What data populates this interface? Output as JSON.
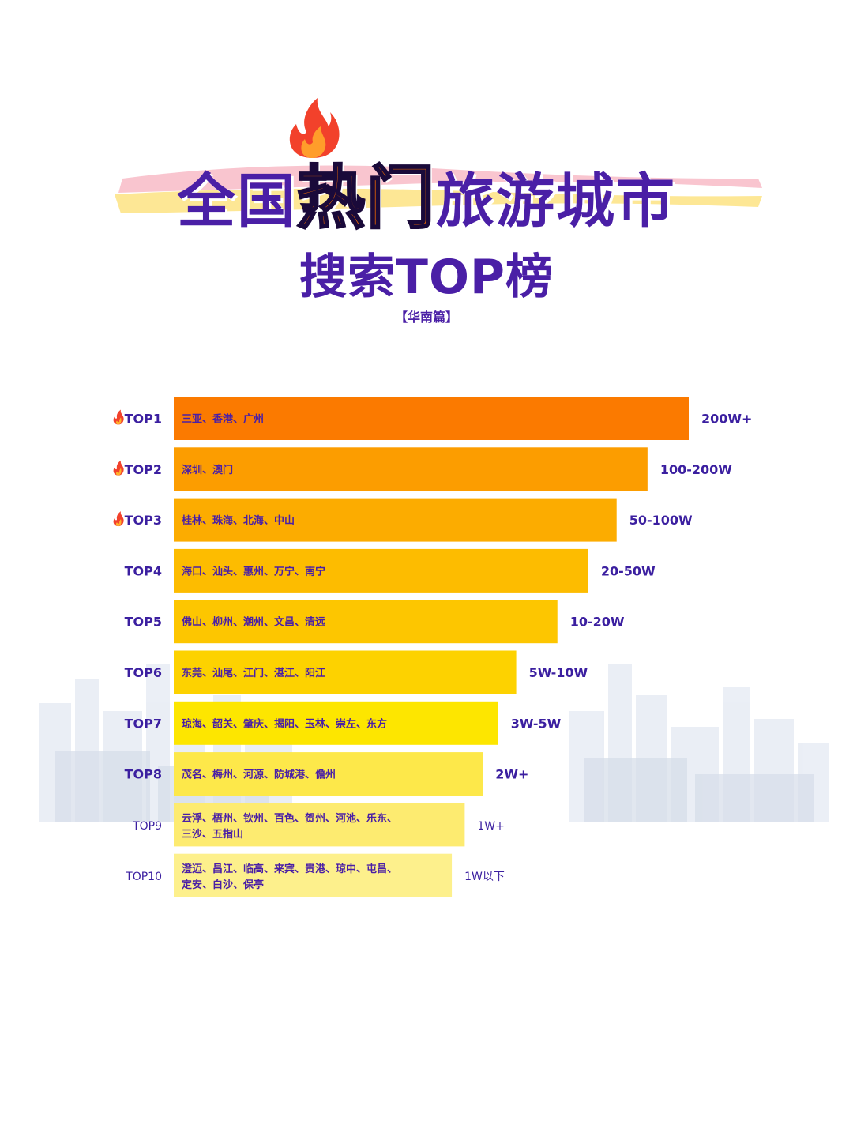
{
  "header": {
    "title_part1": "全国",
    "title_hot": "热门",
    "title_part2": "旅游城市",
    "title_line2": "搜索TOP榜",
    "subtitle": "【华南篇】"
  },
  "colors": {
    "title": "#4a1fa6",
    "hot": "#f06a00",
    "bar_top": "#fb7a00",
    "bar_bottom": "#fdf08c"
  },
  "chart_data": {
    "type": "bar",
    "orientation": "horizontal",
    "title": "",
    "xlabel": "",
    "ylabel": "",
    "categories": [
      "TOP1",
      "TOP2",
      "TOP3",
      "TOP4",
      "TOP5",
      "TOP6",
      "TOP7",
      "TOP8",
      "TOP9",
      "TOP10"
    ],
    "hot_flags": [
      true,
      true,
      true,
      false,
      false,
      false,
      false,
      false,
      false,
      false
    ],
    "cities": [
      [
        "三亚、香港、广州"
      ],
      [
        "深圳、澳门"
      ],
      [
        "桂林、珠海、北海、中山"
      ],
      [
        "海口、汕头、惠州、万宁、南宁"
      ],
      [
        "佛山、柳州、潮州、文昌、清远"
      ],
      [
        "东莞、汕尾、江门、湛江、阳江"
      ],
      [
        "琼海、韶关、肇庆、揭阳、玉林、崇左、东方"
      ],
      [
        "茂名、梅州、河源、防城港、儋州"
      ],
      [
        "云浮、梧州、钦州、百色、贺州、河池、乐东、",
        "三沙、五指山"
      ],
      [
        "澄迈、昌江、临高、来宾、贵港、琼中、屯昌、",
        "定安、白沙、保亭"
      ]
    ],
    "value_labels": [
      "200W+",
      "100-200W",
      "50-100W",
      "20-50W",
      "10-20W",
      "5W-10W",
      "3W-5W",
      "2W+",
      "1W+",
      "1W以下"
    ],
    "values": [
      100,
      92,
      86,
      80.5,
      74.5,
      66.5,
      63,
      60,
      56.5,
      54
    ],
    "bar_colors": [
      "#fb7a00",
      "#fc9d00",
      "#fcac00",
      "#fdbc00",
      "#fdc600",
      "#fdd200",
      "#fde600",
      "#fde84a",
      "#fdeb70",
      "#fdf08c"
    ],
    "xlim": [
      0,
      100
    ],
    "grid": false,
    "legend": "none"
  }
}
